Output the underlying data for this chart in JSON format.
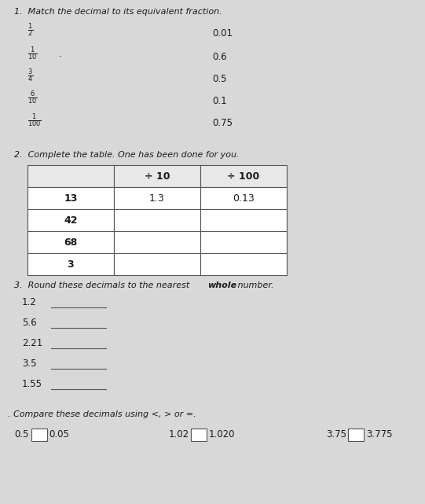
{
  "bg_color": "#d8d8d8",
  "text_color": "#1a1a1a",
  "title1": "1.  Match the decimal to its equivalent fraction.",
  "fractions": [
    "\\frac{1}{2}",
    "\\frac{1}{10}",
    "\\frac{3}{4}",
    "\\frac{6}{10}",
    "\\frac{1}{100}"
  ],
  "decimals_right": [
    "0.01",
    "0.6",
    "0.5",
    "0.1",
    "0.75"
  ],
  "title2": "2.  Complete the table. One has been done for you.",
  "table_headers": [
    "",
    "÷ 10",
    "÷ 100"
  ],
  "table_rows": [
    [
      "13",
      "1.3",
      "0.13"
    ],
    [
      "42",
      "",
      ""
    ],
    [
      "68",
      "",
      ""
    ],
    [
      "3",
      "",
      ""
    ]
  ],
  "title3a": "3.  Round these decimals to the nearest ",
  "title3b": "whole",
  "title3c": " number.",
  "round_items": [
    "1.2",
    "5.6",
    "2.21",
    "3.5",
    "1.55"
  ],
  "title4": ". Compare these decimals using <, > or =.",
  "compare": [
    [
      "0.5",
      "0.05"
    ],
    [
      "1.02",
      "1.020"
    ],
    [
      "3.75",
      "3.775"
    ]
  ]
}
